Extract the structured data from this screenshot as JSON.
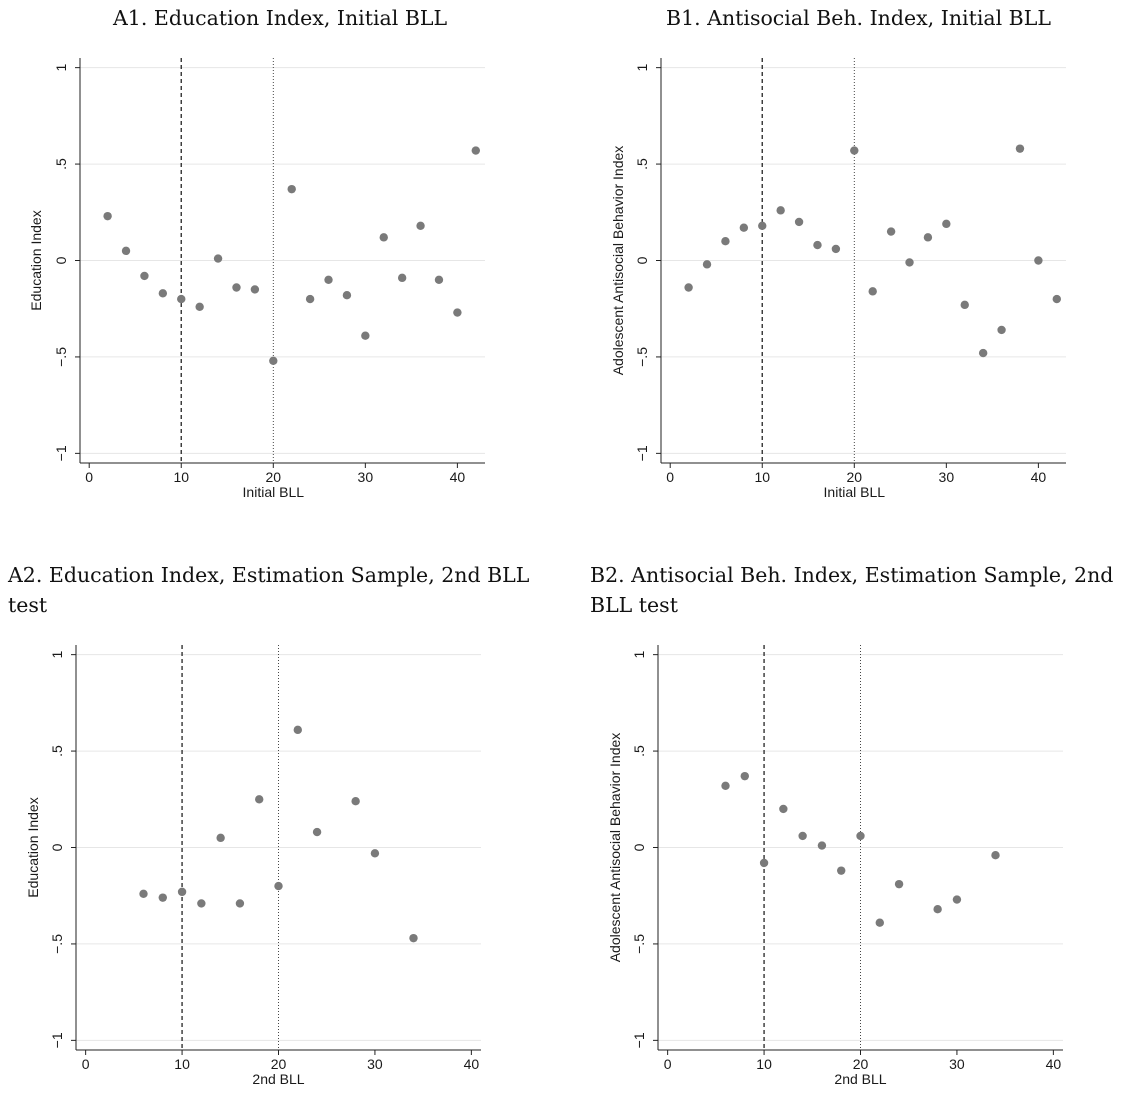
{
  "chart_data": [
    {
      "id": "A1",
      "type": "scatter",
      "title": "A1. Education Index, Initial BLL",
      "xlabel": "Initial BLL",
      "ylabel": "Education Index",
      "xlim": [
        -1,
        43
      ],
      "ylim": [
        -1.05,
        1.05
      ],
      "xticks": [
        0,
        10,
        20,
        30,
        40
      ],
      "yticks": [
        -1,
        -0.5,
        0,
        0.5,
        1
      ],
      "yticklabels": [
        "−1",
        "−.5",
        "0",
        ".5",
        "1"
      ],
      "grid": true,
      "vlines": [
        {
          "x": 10,
          "style": "dashed"
        },
        {
          "x": 20,
          "style": "dotted"
        }
      ],
      "x": [
        2,
        4,
        6,
        8,
        10,
        12,
        14,
        16,
        18,
        20,
        22,
        24,
        26,
        28,
        30,
        32,
        34,
        36,
        38,
        40,
        42
      ],
      "y": [
        0.23,
        0.05,
        -0.08,
        -0.17,
        -0.2,
        -0.24,
        0.01,
        -0.14,
        -0.15,
        -0.52,
        0.37,
        -0.2,
        -0.1,
        -0.18,
        -0.39,
        0.12,
        -0.09,
        0.18,
        -0.1,
        -0.27,
        0.57
      ]
    },
    {
      "id": "B1",
      "type": "scatter",
      "title": "B1. Antisocial Beh. Index, Initial BLL",
      "xlabel": "Initial BLL",
      "ylabel": "Adolescent Antisocial Behavior Index",
      "xlim": [
        -1,
        43
      ],
      "ylim": [
        -1.05,
        1.05
      ],
      "xticks": [
        0,
        10,
        20,
        30,
        40
      ],
      "yticks": [
        -1,
        -0.5,
        0,
        0.5,
        1
      ],
      "yticklabels": [
        "−1",
        "−.5",
        "0",
        ".5",
        "1"
      ],
      "grid": true,
      "vlines": [
        {
          "x": 10,
          "style": "dashed"
        },
        {
          "x": 20,
          "style": "dotted"
        }
      ],
      "x": [
        2,
        4,
        6,
        8,
        10,
        12,
        14,
        16,
        18,
        20,
        22,
        24,
        26,
        28,
        30,
        32,
        34,
        36,
        38,
        40,
        42
      ],
      "y": [
        -0.14,
        -0.02,
        0.1,
        0.17,
        0.18,
        0.26,
        0.2,
        0.08,
        0.06,
        0.57,
        -0.16,
        0.15,
        -0.01,
        0.12,
        0.19,
        -0.23,
        -0.48,
        -0.36,
        0.58,
        0.0,
        -0.2
      ]
    },
    {
      "id": "A2",
      "type": "scatter",
      "title": "A2. Education Index, Estimation Sample, 2nd BLL test",
      "xlabel": "2nd BLL",
      "ylabel": "Education Index",
      "xlim": [
        -1,
        41
      ],
      "ylim": [
        -1.05,
        1.05
      ],
      "xticks": [
        0,
        10,
        20,
        30,
        40
      ],
      "yticks": [
        -1,
        -0.5,
        0,
        0.5,
        1
      ],
      "yticklabels": [
        "−1",
        "−.5",
        "0",
        ".5",
        "1"
      ],
      "grid": true,
      "vlines": [
        {
          "x": 10,
          "style": "dashed"
        },
        {
          "x": 20,
          "style": "dotted"
        }
      ],
      "x": [
        6,
        8,
        10,
        12,
        14,
        16,
        18,
        20,
        22,
        24,
        28,
        30,
        34
      ],
      "y": [
        -0.24,
        -0.26,
        -0.23,
        -0.29,
        0.05,
        -0.29,
        0.25,
        -0.2,
        0.61,
        0.08,
        0.24,
        -0.03,
        -0.47
      ]
    },
    {
      "id": "B2",
      "type": "scatter",
      "title": "B2. Antisocial Beh. Index, Estimation Sample, 2nd BLL test",
      "xlabel": "2nd BLL",
      "ylabel": "Adolescent Antisocial Behavior Index",
      "xlim": [
        -1,
        41
      ],
      "ylim": [
        -1.05,
        1.05
      ],
      "xticks": [
        0,
        10,
        20,
        30,
        40
      ],
      "yticks": [
        -1,
        -0.5,
        0,
        0.5,
        1
      ],
      "yticklabels": [
        "−1",
        "−.5",
        "0",
        ".5",
        "1"
      ],
      "grid": true,
      "vlines": [
        {
          "x": 10,
          "style": "dashed"
        },
        {
          "x": 20,
          "style": "dotted"
        }
      ],
      "x": [
        6,
        8,
        10,
        12,
        14,
        16,
        18,
        20,
        22,
        24,
        28,
        30,
        34
      ],
      "y": [
        0.32,
        0.37,
        -0.08,
        0.2,
        0.06,
        0.01,
        -0.12,
        0.06,
        -0.39,
        -0.19,
        -0.32,
        -0.27,
        -0.04
      ]
    }
  ],
  "colors": {
    "marker": "#7a7a7a",
    "axis": "#222222",
    "grid": "#e6e6e6",
    "vline": "#333333"
  }
}
